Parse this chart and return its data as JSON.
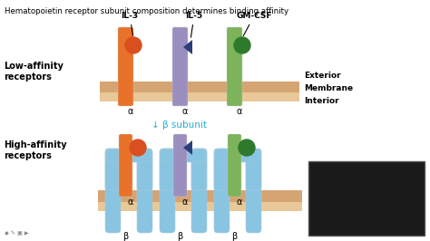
{
  "title": "Hematopoietin receptor subunit composition determines binding affinity",
  "membrane_color": "#d4a472",
  "receptor_colors": {
    "IL3_alpha": "#e8722a",
    "IL5_alpha": "#9b8fc0",
    "GMCSF_alpha": "#7db35a",
    "beta": "#89c4e1"
  },
  "cytokine_labels": [
    "IL-3",
    "IL-5",
    "GM-CSF"
  ],
  "low_label": "Low-affinity\nreceptors",
  "high_label": "High-affinity\nreceptors",
  "exterior_label": "Exterior",
  "membrane_label": "Membrane",
  "interior_label": "Interior",
  "beta_arrow_text": "↓ β subunit",
  "alpha_label": "α",
  "beta_label": "β",
  "webcam_color": "#222222",
  "text_color": "#222222",
  "cyan_color": "#2aadcf"
}
